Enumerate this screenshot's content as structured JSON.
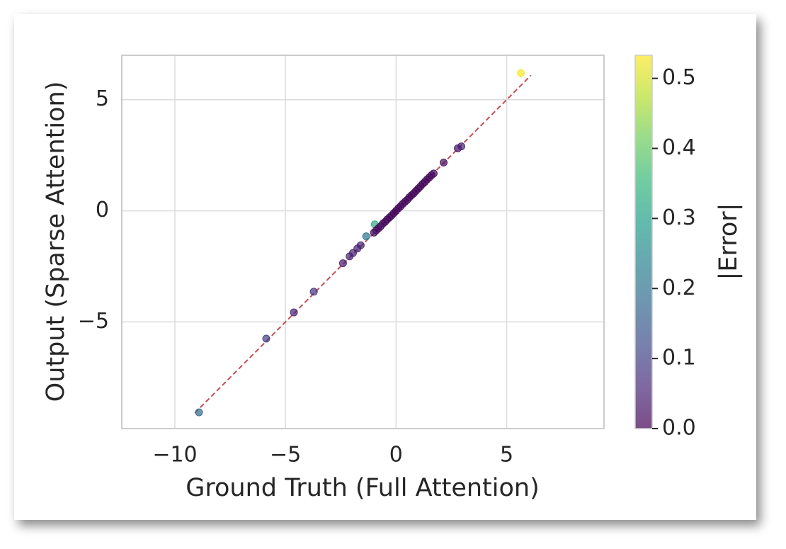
{
  "chart_data": {
    "type": "scatter",
    "xlabel": "Ground Truth (Full Attention)",
    "ylabel": "Output (Sparse Attention)",
    "xlim": [
      -12.4,
      9.4
    ],
    "ylim": [
      -9.8,
      7.0
    ],
    "xticks": [
      {
        "value": -10,
        "label": "−10"
      },
      {
        "value": -5,
        "label": "−5"
      },
      0,
      5
    ],
    "yticks": [
      {
        "value": -5,
        "label": "−5"
      },
      0,
      5
    ],
    "grid": true,
    "reference_line": {
      "color": "#c44e52",
      "x": [
        -9.1,
        6.1
      ],
      "y": [
        -9.1,
        6.1
      ]
    },
    "colorbar": {
      "label": "|Error|",
      "clim": [
        0,
        0.533
      ],
      "cmap": "viridis",
      "ticks": [
        {
          "value": 0,
          "label": "0.0"
        },
        0.1,
        0.2,
        0.3,
        0.4,
        0.5
      ]
    },
    "series": [
      {
        "x": [
          -8.91,
          -5.87,
          -4.62,
          -3.72,
          -2.4,
          -2.1,
          -1.95,
          -1.75,
          -1.6,
          -1.35,
          -0.96,
          -1.0,
          -0.9,
          -0.8,
          -0.7,
          -0.6,
          -0.5,
          -0.4,
          -0.3,
          -0.2,
          -0.1,
          0.0,
          0.1,
          0.2,
          0.3,
          0.4,
          0.5,
          0.6,
          0.7,
          0.8,
          0.9,
          1.0,
          1.1,
          1.2,
          1.3,
          1.4,
          1.5,
          1.6,
          1.7,
          2.15,
          2.79,
          2.95,
          5.64
        ],
        "y": [
          -9.07,
          -5.75,
          -4.57,
          -3.64,
          -2.36,
          -2.05,
          -1.9,
          -1.7,
          -1.55,
          -1.15,
          -0.61,
          -0.98,
          -0.88,
          -0.79,
          -0.7,
          -0.58,
          -0.5,
          -0.39,
          -0.3,
          -0.21,
          -0.1,
          0.0,
          0.11,
          0.2,
          0.31,
          0.4,
          0.49,
          0.61,
          0.7,
          0.79,
          0.9,
          1.0,
          1.1,
          1.21,
          1.3,
          1.41,
          1.5,
          1.6,
          1.68,
          2.17,
          2.81,
          2.9,
          6.2
        ],
        "error": [
          0.18,
          0.1,
          0.05,
          0.08,
          0.04,
          0.05,
          0.05,
          0.05,
          0.05,
          0.2,
          0.33,
          0.02,
          0.02,
          0.01,
          0.01,
          0.02,
          0.01,
          0.01,
          0.01,
          0.01,
          0.01,
          0.0,
          0.01,
          0.01,
          0.01,
          0.01,
          0.01,
          0.01,
          0.01,
          0.01,
          0.01,
          0.01,
          0.01,
          0.01,
          0.01,
          0.01,
          0.01,
          0.01,
          0.02,
          0.02,
          0.03,
          0.05,
          0.53
        ]
      }
    ]
  }
}
